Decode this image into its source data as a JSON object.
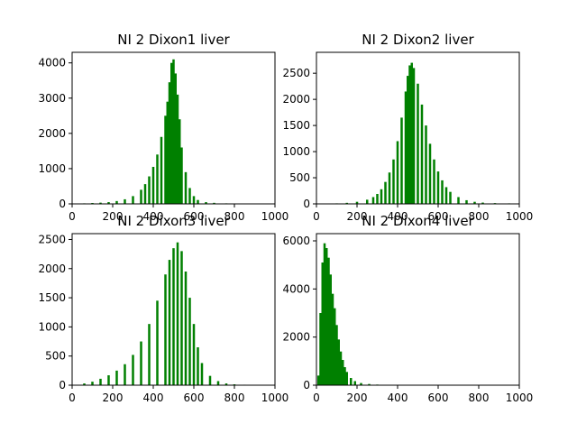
{
  "chart_data": [
    {
      "type": "bar",
      "title": "NI 2 Dixon1 liver",
      "xlabel": "",
      "ylabel": "",
      "xlim": [
        0,
        1000
      ],
      "ylim": [
        0,
        4300
      ],
      "xticks": [
        0,
        200,
        400,
        600,
        800,
        1000
      ],
      "yticks": [
        0,
        1000,
        2000,
        3000,
        4000
      ],
      "color": "#008000",
      "grid": false,
      "series": [
        {
          "x": [
            20,
            60,
            100,
            140,
            180,
            220,
            260,
            300,
            340,
            360,
            380,
            400,
            420,
            440,
            460,
            470,
            480,
            490,
            500,
            510,
            520,
            530,
            540,
            560,
            580,
            600,
            620,
            660,
            700,
            760,
            820,
            900
          ],
          "values": [
            10,
            15,
            25,
            35,
            50,
            80,
            130,
            220,
            400,
            560,
            780,
            1050,
            1400,
            1900,
            2500,
            2900,
            3450,
            4000,
            4100,
            3700,
            3100,
            2400,
            1600,
            900,
            450,
            220,
            110,
            50,
            30,
            15,
            10,
            5
          ]
        }
      ]
    },
    {
      "type": "bar",
      "title": "NI 2 Dixon2 liver",
      "xlabel": "",
      "ylabel": "",
      "xlim": [
        0,
        1000
      ],
      "ylim": [
        0,
        2900
      ],
      "xticks": [
        0,
        200,
        400,
        600,
        800,
        1000
      ],
      "yticks": [
        0,
        500,
        1000,
        1500,
        2000,
        2500
      ],
      "color": "#008000",
      "grid": false,
      "series": [
        {
          "x": [
            100,
            150,
            200,
            250,
            280,
            300,
            320,
            340,
            360,
            380,
            400,
            420,
            440,
            450,
            460,
            470,
            480,
            500,
            520,
            540,
            560,
            580,
            600,
            620,
            640,
            660,
            700,
            740,
            780,
            820,
            880,
            950
          ],
          "values": [
            10,
            20,
            40,
            80,
            130,
            190,
            280,
            420,
            600,
            850,
            1200,
            1650,
            2150,
            2450,
            2650,
            2700,
            2600,
            2300,
            1900,
            1500,
            1150,
            850,
            620,
            450,
            320,
            230,
            130,
            70,
            40,
            25,
            15,
            10
          ]
        }
      ]
    },
    {
      "type": "bar",
      "title": "NI 2 Dixon3 liver",
      "xlabel": "",
      "ylabel": "",
      "xlim": [
        0,
        1000
      ],
      "ylim": [
        0,
        2600
      ],
      "xticks": [
        0,
        200,
        400,
        600,
        800,
        1000
      ],
      "yticks": [
        0,
        500,
        1000,
        1500,
        2000,
        2500
      ],
      "color": "#008000",
      "grid": false,
      "series": [
        {
          "x": [
            60,
            100,
            140,
            180,
            220,
            260,
            300,
            340,
            380,
            420,
            460,
            480,
            500,
            520,
            540,
            560,
            580,
            600,
            620,
            640,
            680,
            720,
            760,
            800,
            850,
            900
          ],
          "values": [
            30,
            60,
            110,
            170,
            250,
            360,
            520,
            750,
            1050,
            1450,
            1900,
            2150,
            2350,
            2450,
            2300,
            1950,
            1500,
            1050,
            650,
            380,
            160,
            70,
            30,
            15,
            8,
            5
          ]
        }
      ]
    },
    {
      "type": "bar",
      "title": "NI 2 Dixon4 liver",
      "xlabel": "",
      "ylabel": "",
      "xlim": [
        0,
        1000
      ],
      "ylim": [
        0,
        6300
      ],
      "xticks": [
        0,
        200,
        400,
        600,
        800,
        1000
      ],
      "yticks": [
        0,
        2000,
        4000,
        6000
      ],
      "color": "#008000",
      "grid": false,
      "series": [
        {
          "x": [
            10,
            20,
            30,
            40,
            50,
            60,
            70,
            80,
            90,
            100,
            110,
            120,
            130,
            140,
            150,
            170,
            190,
            220,
            260,
            300,
            350,
            400
          ],
          "values": [
            400,
            3000,
            5100,
            5900,
            5700,
            5300,
            4600,
            3800,
            3200,
            2500,
            1900,
            1400,
            1050,
            750,
            550,
            300,
            170,
            90,
            50,
            25,
            10,
            5
          ]
        }
      ]
    }
  ]
}
